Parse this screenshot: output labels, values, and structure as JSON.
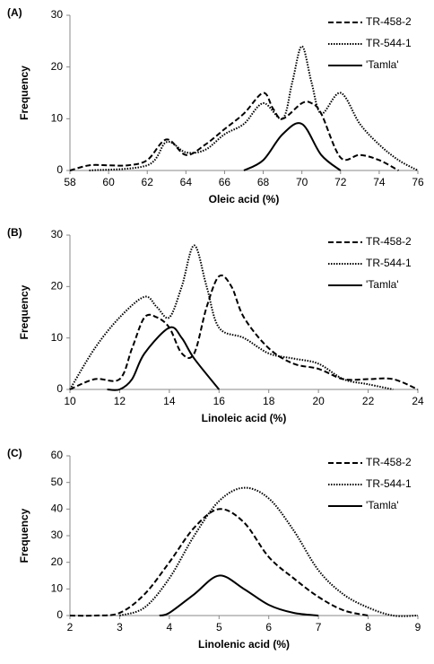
{
  "chart_data": [
    {
      "type": "line",
      "panel_label": "(A)",
      "x_label": "Oleic acid (%)",
      "y_label": "Frequency",
      "xlim": [
        58,
        76
      ],
      "xticks": [
        58,
        60,
        62,
        64,
        66,
        68,
        70,
        72,
        74,
        76
      ],
      "ylim": [
        0,
        30
      ],
      "yticks": [
        0,
        10,
        20,
        30
      ],
      "legend": "top-right",
      "series": [
        {
          "name": "TR-458-2",
          "color": "#000000",
          "style": "dashed",
          "x": [
            58,
            59,
            60,
            61,
            62,
            63,
            64,
            65,
            66,
            67,
            68,
            68.5,
            69,
            70,
            70.5,
            71,
            72,
            73,
            74,
            75
          ],
          "values": [
            0,
            1,
            1,
            1,
            2,
            6,
            3,
            5,
            8,
            11,
            15,
            12,
            10,
            13,
            13,
            11,
            2.5,
            3,
            2,
            0
          ]
        },
        {
          "name": "TR-544-1",
          "color": "#000000",
          "style": "dotted",
          "x": [
            59,
            62,
            63,
            64,
            65,
            66,
            67,
            68,
            69,
            69.5,
            70,
            70.5,
            71,
            72,
            73,
            74,
            75,
            76
          ],
          "values": [
            0,
            1,
            5.5,
            3.5,
            4,
            7,
            9,
            13,
            10,
            17,
            24,
            17,
            11,
            15,
            9,
            5,
            2,
            0
          ]
        },
        {
          "name": "'Tamla'",
          "color": "#000000",
          "style": "solid",
          "x": [
            67,
            68,
            69,
            70,
            71,
            72
          ],
          "values": [
            0,
            2,
            7,
            9,
            3,
            0
          ]
        }
      ]
    },
    {
      "type": "line",
      "panel_label": "(B)",
      "x_label": "Linoleic acid (%)",
      "y_label": "Frequency",
      "xlim": [
        10,
        24
      ],
      "xticks": [
        10,
        12,
        14,
        16,
        18,
        20,
        22,
        24
      ],
      "ylim": [
        0,
        30
      ],
      "yticks": [
        0,
        10,
        20,
        30
      ],
      "legend": "top-right",
      "series": [
        {
          "name": "TR-458-2",
          "color": "#000000",
          "style": "dashed",
          "x": [
            10,
            11,
            12,
            12.5,
            13,
            13.5,
            14,
            14.5,
            15,
            15.5,
            16,
            16.5,
            17,
            18,
            19,
            20,
            21,
            22,
            23,
            24
          ],
          "values": [
            0,
            2,
            2,
            8,
            14,
            14,
            12,
            7,
            7,
            16,
            22,
            20,
            14,
            8,
            5,
            4,
            2,
            2,
            2,
            0
          ]
        },
        {
          "name": "TR-544-1",
          "color": "#000000",
          "style": "dotted",
          "x": [
            10,
            11,
            12,
            13,
            13.5,
            14,
            14.5,
            15,
            15.5,
            16,
            17,
            18,
            19,
            20,
            21,
            22,
            23
          ],
          "values": [
            0,
            8,
            14,
            18,
            16,
            14,
            20,
            28,
            20,
            12,
            10,
            7,
            6,
            5,
            2,
            1,
            0
          ]
        },
        {
          "name": "'Tamla'",
          "color": "#000000",
          "style": "solid",
          "x": [
            11.5,
            12,
            12.5,
            13,
            14,
            14.5,
            15,
            16
          ],
          "values": [
            0,
            0,
            2,
            7,
            12,
            10,
            6,
            0
          ]
        }
      ]
    },
    {
      "type": "line",
      "panel_label": "(C)",
      "x_label": "Linolenic acid (%)",
      "y_label": "Frequency",
      "xlim": [
        2,
        9
      ],
      "xticks": [
        2,
        3,
        4,
        5,
        6,
        7,
        8,
        9
      ],
      "ylim": [
        0,
        60
      ],
      "yticks": [
        0,
        10,
        20,
        30,
        40,
        50,
        60
      ],
      "legend": "top-right",
      "series": [
        {
          "name": "TR-458-2",
          "color": "#000000",
          "style": "dashed",
          "x": [
            2,
            2.5,
            3,
            3.5,
            4,
            4.5,
            5,
            5.5,
            6,
            6.5,
            7,
            7.5,
            8
          ],
          "values": [
            0,
            0,
            1,
            8,
            20,
            33,
            40,
            35,
            22,
            14,
            7,
            2,
            0
          ]
        },
        {
          "name": "TR-544-1",
          "color": "#000000",
          "style": "dotted",
          "x": [
            3,
            3.5,
            4,
            4.5,
            5,
            5.5,
            6,
            6.5,
            7,
            7.5,
            8,
            8.5,
            9
          ],
          "values": [
            0,
            3,
            14,
            30,
            43,
            48,
            44,
            32,
            17,
            8,
            3,
            0,
            0
          ]
        },
        {
          "name": "'Tamla'",
          "color": "#000000",
          "style": "solid",
          "x": [
            3.8,
            4,
            4.5,
            5,
            5.5,
            6,
            6.5,
            7
          ],
          "values": [
            0,
            1,
            8,
            15,
            10,
            4,
            1,
            0
          ]
        }
      ]
    }
  ]
}
